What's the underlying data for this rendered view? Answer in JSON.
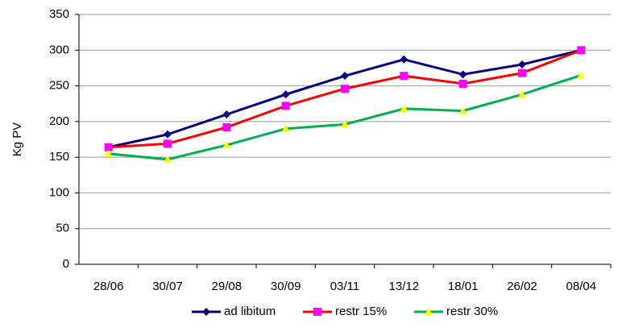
{
  "chart_data": {
    "type": "line",
    "y_label": "Kg PV",
    "categories": [
      "28/06",
      "30/07",
      "29/08",
      "30/09",
      "03/11",
      "13/12",
      "18/01",
      "26/02",
      "08/04"
    ],
    "series": [
      {
        "name": "ad libitum",
        "color": "#000080",
        "marker": "diamond",
        "marker_color": "#000080",
        "values": [
          164,
          182,
          210,
          238,
          264,
          287,
          266,
          280,
          300
        ]
      },
      {
        "name": "restr 15%",
        "color": "#ff0000",
        "marker": "square",
        "marker_color": "#ff00ff",
        "values": [
          164,
          169,
          192,
          222,
          246,
          264,
          253,
          268,
          300
        ]
      },
      {
        "name": "restr 30%",
        "color": "#00b050",
        "marker": "triangle",
        "marker_color": "#ffff00",
        "values": [
          155,
          147,
          167,
          190,
          196,
          218,
          215,
          238,
          265
        ]
      }
    ],
    "ylim": [
      0,
      350
    ],
    "yticks": [
      0,
      50,
      100,
      150,
      200,
      250,
      300,
      350
    ],
    "grid": true,
    "legend": "bottom"
  }
}
